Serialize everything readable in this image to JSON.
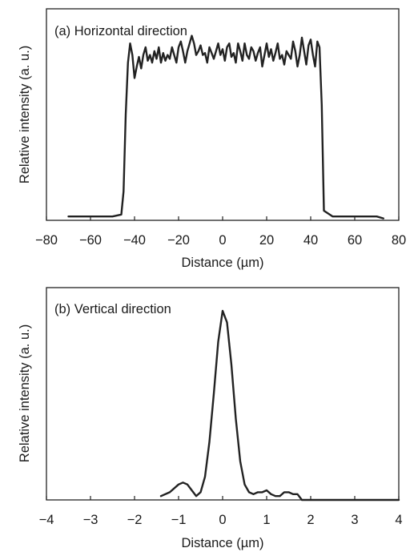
{
  "chart_data": [
    {
      "type": "line",
      "title": "(a) Horizontal direction",
      "xlabel": "Distance (µm)",
      "ylabel": "Relative intensity (a. u.)",
      "xlim": [
        -80,
        80
      ],
      "ylim": [
        0,
        1.1
      ],
      "xticks": [
        "−80",
        "−60",
        "−40",
        "−20",
        "0",
        "20",
        "40",
        "60",
        "80"
      ],
      "grid": false,
      "series": [
        {
          "x": [
            -70,
            -60,
            -50,
            -46,
            -45,
            -44,
            -43,
            -42,
            -41,
            -40,
            -39,
            -38,
            -37,
            -36,
            -35,
            -34,
            -33,
            -32,
            -31,
            -30,
            -29,
            -28,
            -27,
            -26,
            -25,
            -24,
            -23,
            -22,
            -21,
            -20,
            -19,
            -18,
            -17,
            -16,
            -15,
            -14,
            -13,
            -12,
            -11,
            -10,
            -9,
            -8,
            -7,
            -6,
            -5,
            -4,
            -3,
            -2,
            -1,
            0,
            1,
            2,
            3,
            4,
            5,
            6,
            7,
            8,
            9,
            10,
            11,
            12,
            13,
            14,
            15,
            16,
            17,
            18,
            19,
            20,
            21,
            22,
            23,
            24,
            25,
            26,
            27,
            28,
            29,
            30,
            31,
            32,
            33,
            34,
            35,
            36,
            37,
            38,
            39,
            40,
            41,
            42,
            43,
            44,
            45,
            46,
            50,
            60,
            70,
            73
          ],
          "values": [
            0.02,
            0.02,
            0.02,
            0.03,
            0.15,
            0.55,
            0.82,
            0.92,
            0.86,
            0.74,
            0.8,
            0.85,
            0.79,
            0.86,
            0.9,
            0.83,
            0.86,
            0.82,
            0.88,
            0.84,
            0.9,
            0.82,
            0.87,
            0.83,
            0.86,
            0.84,
            0.9,
            0.86,
            0.82,
            0.9,
            0.93,
            0.88,
            0.82,
            0.88,
            0.92,
            0.96,
            0.92,
            0.86,
            0.88,
            0.91,
            0.86,
            0.87,
            0.82,
            0.9,
            0.87,
            0.84,
            0.88,
            0.92,
            0.86,
            0.89,
            0.83,
            0.9,
            0.92,
            0.85,
            0.87,
            0.82,
            0.92,
            0.88,
            0.83,
            0.92,
            0.86,
            0.84,
            0.9,
            0.88,
            0.83,
            0.87,
            0.9,
            0.8,
            0.86,
            0.92,
            0.85,
            0.89,
            0.83,
            0.87,
            0.92,
            0.84,
            0.86,
            0.81,
            0.88,
            0.86,
            0.84,
            0.93,
            0.88,
            0.8,
            0.86,
            0.95,
            0.88,
            0.81,
            0.91,
            0.94,
            0.86,
            0.8,
            0.93,
            0.9,
            0.6,
            0.05,
            0.02,
            0.02,
            0.02,
            0.01
          ]
        }
      ]
    },
    {
      "type": "line",
      "title": "(b) Vertical direction",
      "xlabel": "Distance (µm)",
      "ylabel": "Relative intensity (a. u.)",
      "xlim": [
        -4,
        4
      ],
      "ylim": [
        0,
        1.1
      ],
      "xticks": [
        "−4",
        "−3",
        "−2",
        "−1",
        "0",
        "1",
        "2",
        "3",
        "4"
      ],
      "grid": false,
      "series": [
        {
          "x": [
            -1.4,
            -1.2,
            -1.0,
            -0.9,
            -0.8,
            -0.7,
            -0.6,
            -0.5,
            -0.4,
            -0.3,
            -0.2,
            -0.1,
            0.0,
            0.1,
            0.2,
            0.3,
            0.4,
            0.5,
            0.6,
            0.7,
            0.8,
            0.9,
            1.0,
            1.1,
            1.2,
            1.3,
            1.4,
            1.5,
            1.6,
            1.7,
            1.8,
            2.0,
            3.0,
            4.0
          ],
          "values": [
            0.02,
            0.04,
            0.08,
            0.09,
            0.08,
            0.05,
            0.02,
            0.04,
            0.12,
            0.3,
            0.55,
            0.82,
            0.98,
            0.92,
            0.7,
            0.42,
            0.2,
            0.08,
            0.04,
            0.03,
            0.04,
            0.04,
            0.05,
            0.03,
            0.02,
            0.02,
            0.04,
            0.04,
            0.03,
            0.03,
            0.0,
            0.0,
            0.0,
            0.0
          ]
        }
      ]
    }
  ]
}
